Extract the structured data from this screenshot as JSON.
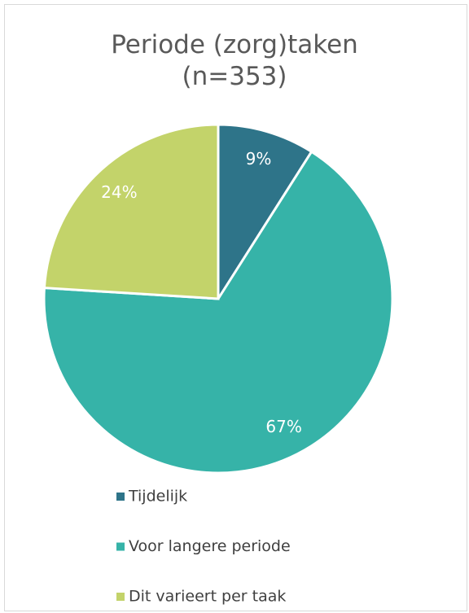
{
  "chart_data": {
    "type": "pie",
    "title": "Periode (zorg)taken\n(n=353)",
    "categories": [
      "Tijdelijk",
      "Voor langere periode",
      "Dit varieert per taak"
    ],
    "values": [
      9,
      67,
      24
    ],
    "value_labels": [
      "9%",
      "67%",
      "24%"
    ],
    "colors": [
      "#2e7489",
      "#36b3a8",
      "#c3d36a"
    ]
  }
}
